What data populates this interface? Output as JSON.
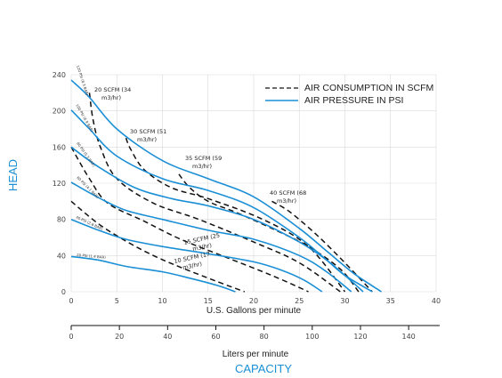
{
  "chart_data": {
    "type": "line",
    "xlabel": "U.S. Gallons per minute",
    "ylabel": "HEAD",
    "capacity_label": "CAPACITY",
    "secondary_xlabel": "Liters per minute",
    "xlim": [
      0,
      40
    ],
    "ylim": [
      0,
      240
    ],
    "x_ticks": [
      "0",
      "5",
      "10",
      "15",
      "20",
      "25",
      "30",
      "35",
      "40"
    ],
    "y_ticks": [
      "0",
      "40",
      "80",
      "120",
      "160",
      "200",
      "240"
    ],
    "secondary_x_ticks": [
      "0",
      "20",
      "40",
      "60",
      "80",
      "100",
      "120",
      "140"
    ],
    "secondary_tick_values": [
      0,
      20,
      40,
      60,
      80,
      100,
      120,
      140
    ],
    "secondary_per_primary": 3.785,
    "legend": {
      "position": "top-right",
      "entries": [
        {
          "label": "AIR CONSUMPTION IN SCFM",
          "style": "dashed",
          "color": "#111111"
        },
        {
          "label": "AIR PRESSURE IN PSI",
          "style": "solid",
          "color": "#1a8fd6"
        }
      ]
    },
    "colors": {
      "pressure": "#1a8fd6",
      "consumption": "#111111",
      "title_accent": "#1a8fd6",
      "grid": "#d9d9d9"
    },
    "pressure_series": [
      {
        "name": "120 PSI (8.3 BAR)",
        "x": [
          0,
          2,
          5,
          10,
          15,
          20,
          25,
          28,
          31,
          34
        ],
        "y": [
          234,
          215,
          180,
          145,
          125,
          105,
          70,
          45,
          20,
          0
        ]
      },
      {
        "name": "100 PSI (6.9 BAR)",
        "x": [
          0,
          2,
          5,
          10,
          15,
          20,
          25,
          28,
          30,
          33
        ],
        "y": [
          201,
          180,
          150,
          125,
          112,
          93,
          60,
          35,
          18,
          0
        ]
      },
      {
        "name": "80 PSI (5.5 BAR)",
        "x": [
          0,
          3,
          7,
          11,
          15,
          20,
          25,
          28,
          30,
          32
        ],
        "y": [
          160,
          138,
          115,
          103,
          95,
          80,
          55,
          35,
          18,
          0
        ]
      },
      {
        "name": "60 PSI (4.1 BAR)",
        "x": [
          0,
          3,
          6,
          10,
          15,
          20,
          25,
          28,
          30.7
        ],
        "y": [
          121,
          104,
          90,
          80,
          68,
          58,
          40,
          22,
          0
        ]
      },
      {
        "name": "40 PSI (2.8 BAR)",
        "x": [
          0,
          3,
          6,
          10,
          15,
          20,
          23,
          25.5,
          27.5
        ],
        "y": [
          80,
          68,
          58,
          50,
          42,
          33,
          24,
          13,
          0
        ]
      },
      {
        "name": "20 PSI (1.4 BAR)",
        "x": [
          0,
          3,
          6,
          10,
          13,
          16,
          18
        ],
        "y": [
          39,
          35,
          28,
          22,
          15,
          7,
          0
        ]
      }
    ],
    "consumption_series": [
      {
        "name": "10 SCFM (17 m3/hr)",
        "x": [
          0,
          3,
          6,
          9,
          12,
          15.8,
          19
        ],
        "y": [
          100,
          75,
          56,
          40,
          27,
          12,
          0
        ]
      },
      {
        "name": "15 SCFM (25 m3/hr)",
        "x": [
          0,
          2,
          4,
          8,
          12,
          17,
          22,
          26
        ],
        "y": [
          160,
          125,
          98,
          78,
          58,
          38,
          18,
          0
        ]
      },
      {
        "name": "20 SCFM (34 m3/hr)",
        "x": [
          2,
          2.4,
          3.2,
          5,
          9,
          14,
          20,
          25,
          29.5
        ],
        "y": [
          220,
          190,
          160,
          125,
          98,
          80,
          55,
          32,
          0
        ]
      },
      {
        "name": "30 SCFM (51 m3/hr)",
        "x": [
          6,
          6.5,
          8,
          11,
          15,
          21,
          26,
          30
        ],
        "y": [
          170,
          158,
          135,
          115,
          103,
          80,
          50,
          0
        ]
      },
      {
        "name": "35 SCFM (59 m3/hr)",
        "x": [
          11.8,
          13,
          15,
          18,
          22,
          26,
          29.5,
          31.5
        ],
        "y": [
          130,
          115,
          100,
          88,
          70,
          50,
          25,
          0
        ]
      },
      {
        "name": "40 SCFM (68 m3/hr)",
        "x": [
          22,
          24,
          27,
          30,
          33
        ],
        "y": [
          100,
          88,
          62,
          32,
          0
        ]
      }
    ],
    "pressure_labels": [
      {
        "text": "120 PSI (8.3 BAR)"
      },
      {
        "text": "100 PSI (6.9 BAR)"
      },
      {
        "text": "80 PSI (5.5 BAR)"
      },
      {
        "text": "60 PSI (4.1 BAR)"
      },
      {
        "text": "40 PSI (2.8 BAR)"
      },
      {
        "text": "20 PSI (1.4 BAR)"
      }
    ],
    "consumption_labels": [
      {
        "line1": "20 SCFM (34",
        "line2": "m3/hr)"
      },
      {
        "line1": "30 SCFM (51",
        "line2": "m3/hr)"
      },
      {
        "line1": "35 SCFM (59",
        "line2": "m3/hr)"
      },
      {
        "line1": "40 SCFM (68",
        "line2": "m3/hr)"
      },
      {
        "line1": "15 SCFM (25",
        "line2": "m3/hr)"
      },
      {
        "line1": "10 SCFM (17",
        "line2": "m3/hr)"
      }
    ]
  }
}
